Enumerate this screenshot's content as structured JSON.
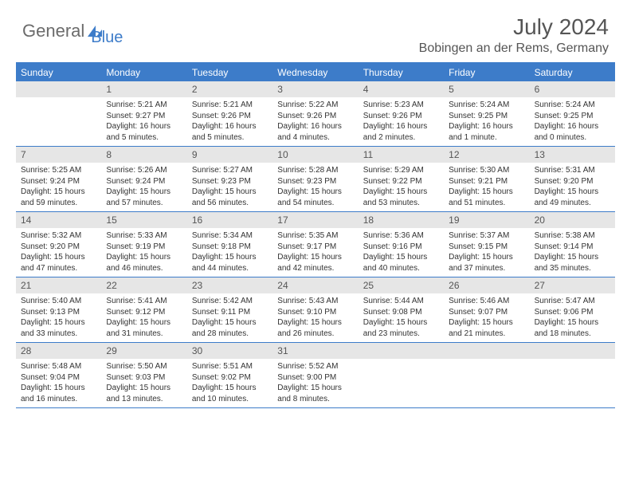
{
  "brand": {
    "part1": "General",
    "part2": "Blue"
  },
  "title": "July 2024",
  "location": "Bobingen an der Rems, Germany",
  "colors": {
    "accent": "#3d7cc9",
    "headerBg": "#3d7cc9",
    "cellNumBg": "#e6e6e6",
    "text": "#333",
    "muted": "#555"
  },
  "dayNames": [
    "Sunday",
    "Monday",
    "Tuesday",
    "Wednesday",
    "Thursday",
    "Friday",
    "Saturday"
  ],
  "weeks": [
    [
      null,
      {
        "n": "1",
        "sr": "5:21 AM",
        "ss": "9:27 PM",
        "dl": "16 hours and 5 minutes."
      },
      {
        "n": "2",
        "sr": "5:21 AM",
        "ss": "9:26 PM",
        "dl": "16 hours and 5 minutes."
      },
      {
        "n": "3",
        "sr": "5:22 AM",
        "ss": "9:26 PM",
        "dl": "16 hours and 4 minutes."
      },
      {
        "n": "4",
        "sr": "5:23 AM",
        "ss": "9:26 PM",
        "dl": "16 hours and 2 minutes."
      },
      {
        "n": "5",
        "sr": "5:24 AM",
        "ss": "9:25 PM",
        "dl": "16 hours and 1 minute."
      },
      {
        "n": "6",
        "sr": "5:24 AM",
        "ss": "9:25 PM",
        "dl": "16 hours and 0 minutes."
      }
    ],
    [
      {
        "n": "7",
        "sr": "5:25 AM",
        "ss": "9:24 PM",
        "dl": "15 hours and 59 minutes."
      },
      {
        "n": "8",
        "sr": "5:26 AM",
        "ss": "9:24 PM",
        "dl": "15 hours and 57 minutes."
      },
      {
        "n": "9",
        "sr": "5:27 AM",
        "ss": "9:23 PM",
        "dl": "15 hours and 56 minutes."
      },
      {
        "n": "10",
        "sr": "5:28 AM",
        "ss": "9:23 PM",
        "dl": "15 hours and 54 minutes."
      },
      {
        "n": "11",
        "sr": "5:29 AM",
        "ss": "9:22 PM",
        "dl": "15 hours and 53 minutes."
      },
      {
        "n": "12",
        "sr": "5:30 AM",
        "ss": "9:21 PM",
        "dl": "15 hours and 51 minutes."
      },
      {
        "n": "13",
        "sr": "5:31 AM",
        "ss": "9:20 PM",
        "dl": "15 hours and 49 minutes."
      }
    ],
    [
      {
        "n": "14",
        "sr": "5:32 AM",
        "ss": "9:20 PM",
        "dl": "15 hours and 47 minutes."
      },
      {
        "n": "15",
        "sr": "5:33 AM",
        "ss": "9:19 PM",
        "dl": "15 hours and 46 minutes."
      },
      {
        "n": "16",
        "sr": "5:34 AM",
        "ss": "9:18 PM",
        "dl": "15 hours and 44 minutes."
      },
      {
        "n": "17",
        "sr": "5:35 AM",
        "ss": "9:17 PM",
        "dl": "15 hours and 42 minutes."
      },
      {
        "n": "18",
        "sr": "5:36 AM",
        "ss": "9:16 PM",
        "dl": "15 hours and 40 minutes."
      },
      {
        "n": "19",
        "sr": "5:37 AM",
        "ss": "9:15 PM",
        "dl": "15 hours and 37 minutes."
      },
      {
        "n": "20",
        "sr": "5:38 AM",
        "ss": "9:14 PM",
        "dl": "15 hours and 35 minutes."
      }
    ],
    [
      {
        "n": "21",
        "sr": "5:40 AM",
        "ss": "9:13 PM",
        "dl": "15 hours and 33 minutes."
      },
      {
        "n": "22",
        "sr": "5:41 AM",
        "ss": "9:12 PM",
        "dl": "15 hours and 31 minutes."
      },
      {
        "n": "23",
        "sr": "5:42 AM",
        "ss": "9:11 PM",
        "dl": "15 hours and 28 minutes."
      },
      {
        "n": "24",
        "sr": "5:43 AM",
        "ss": "9:10 PM",
        "dl": "15 hours and 26 minutes."
      },
      {
        "n": "25",
        "sr": "5:44 AM",
        "ss": "9:08 PM",
        "dl": "15 hours and 23 minutes."
      },
      {
        "n": "26",
        "sr": "5:46 AM",
        "ss": "9:07 PM",
        "dl": "15 hours and 21 minutes."
      },
      {
        "n": "27",
        "sr": "5:47 AM",
        "ss": "9:06 PM",
        "dl": "15 hours and 18 minutes."
      }
    ],
    [
      {
        "n": "28",
        "sr": "5:48 AM",
        "ss": "9:04 PM",
        "dl": "15 hours and 16 minutes."
      },
      {
        "n": "29",
        "sr": "5:50 AM",
        "ss": "9:03 PM",
        "dl": "15 hours and 13 minutes."
      },
      {
        "n": "30",
        "sr": "5:51 AM",
        "ss": "9:02 PM",
        "dl": "15 hours and 10 minutes."
      },
      {
        "n": "31",
        "sr": "5:52 AM",
        "ss": "9:00 PM",
        "dl": "15 hours and 8 minutes."
      },
      null,
      null,
      null
    ]
  ],
  "labels": {
    "sunrise": "Sunrise:",
    "sunset": "Sunset:",
    "daylight": "Daylight:"
  }
}
